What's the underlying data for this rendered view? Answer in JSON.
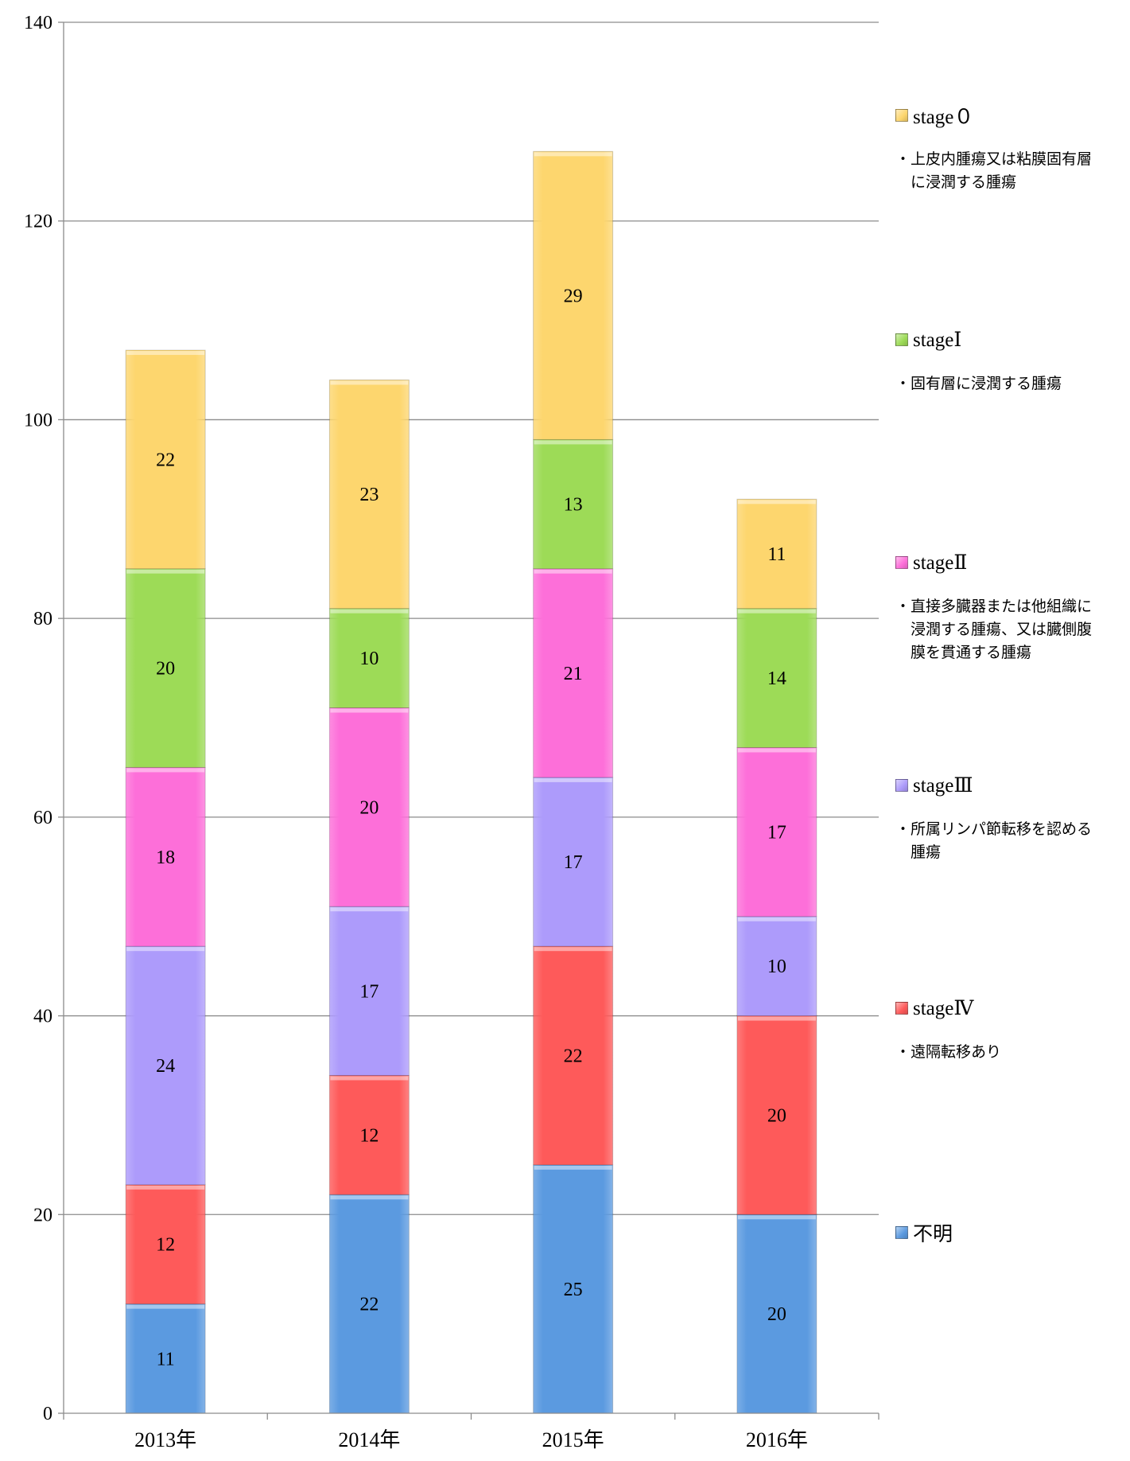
{
  "chart_data": {
    "type": "bar",
    "stacked": true,
    "categories": [
      "2013年",
      "2014年",
      "2015年",
      "2016年"
    ],
    "ylim": [
      0,
      140
    ],
    "yticks": [
      0,
      20,
      40,
      60,
      80,
      100,
      120,
      140
    ],
    "grid": true,
    "legend_position": "right",
    "series": [
      {
        "name": "不明",
        "values": [
          11,
          22,
          25,
          20
        ],
        "color": "#5b9ae0",
        "description": ""
      },
      {
        "name": "stageⅣ",
        "values": [
          12,
          12,
          22,
          20
        ],
        "color": "#fe5a5a",
        "description": "・遠隔転移あり"
      },
      {
        "name": "stageⅢ",
        "values": [
          24,
          17,
          17,
          10
        ],
        "color": "#ad9bfb",
        "description": "・所属リンパ節転移を認める\n　腫瘍"
      },
      {
        "name": "stageⅡ",
        "values": [
          18,
          20,
          21,
          17
        ],
        "color": "#fd6fd9",
        "description": "・直接多臓器または他組織に\n　浸潤する腫瘍、又は臓側腹\n　膜を貫通する腫瘍"
      },
      {
        "name": "stageⅠ",
        "values": [
          20,
          10,
          13,
          14
        ],
        "color": "#9ddb57",
        "description": "・固有層に浸潤する腫瘍"
      },
      {
        "name": "stage０",
        "values": [
          22,
          23,
          29,
          11
        ],
        "color": "#fdd66e",
        "description": "・上皮内腫瘍又は粘膜固有層\n　に浸潤する腫瘍"
      }
    ]
  }
}
